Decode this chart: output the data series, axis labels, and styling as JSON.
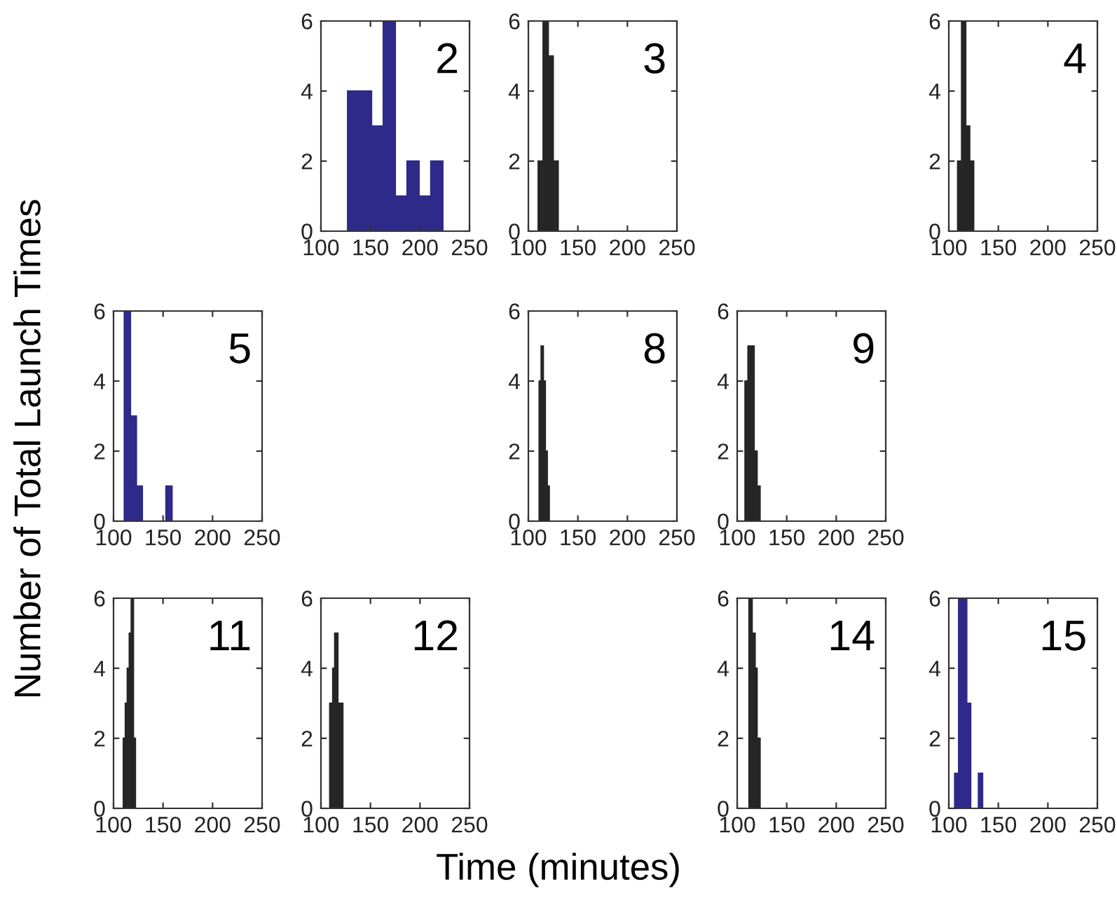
{
  "chart_data": [
    {
      "type": "histogram",
      "title": "2",
      "xlabel": "Time (minutes)",
      "ylabel": "Number of Total Launch Times",
      "color": "#2e2a8a",
      "bins": [
        127,
        139,
        151,
        163,
        175,
        187,
        199,
        211,
        223
      ],
      "values": [
        4,
        4,
        3,
        6,
        1,
        2,
        1,
        2
      ],
      "xlim": [
        100,
        250
      ],
      "ylim": [
        0,
        6
      ],
      "xticks": [
        100,
        150,
        200,
        250
      ],
      "yticks": [
        0,
        2,
        4,
        6
      ]
    },
    {
      "type": "histogram",
      "title": "3",
      "color": "#262626",
      "bins": [
        110,
        115,
        120,
        125,
        130
      ],
      "values": [
        2,
        6,
        5,
        2
      ],
      "xlim": [
        100,
        250
      ],
      "ylim": [
        0,
        6
      ],
      "xticks": [
        100,
        150,
        200,
        250
      ],
      "yticks": [
        0,
        2,
        4,
        6
      ]
    },
    {
      "type": "histogram",
      "title": "4",
      "color": "#262626",
      "bins": [
        109,
        113,
        117,
        121,
        125
      ],
      "values": [
        2,
        6,
        3,
        2
      ],
      "xlim": [
        100,
        250
      ],
      "ylim": [
        0,
        6
      ],
      "xticks": [
        100,
        150,
        200,
        250
      ],
      "yticks": [
        0,
        2,
        4,
        6
      ]
    },
    {
      "type": "histogram",
      "title": "5",
      "color": "#2e2a8a",
      "bins": [
        111,
        117,
        123,
        129,
        135,
        141,
        147,
        153,
        159
      ],
      "values": [
        6,
        3,
        1,
        0,
        0,
        0,
        0,
        1
      ],
      "xlim": [
        100,
        250
      ],
      "ylim": [
        0,
        6
      ],
      "xticks": [
        100,
        150,
        200,
        250
      ],
      "yticks": [
        0,
        2,
        4,
        6
      ]
    },
    {
      "type": "histogram",
      "title": "8",
      "color": "#262626",
      "bins": [
        111,
        113,
        115,
        117,
        119,
        121
      ],
      "values": [
        4,
        5,
        4,
        2,
        1
      ],
      "xlim": [
        100,
        250
      ],
      "ylim": [
        0,
        6
      ],
      "xticks": [
        100,
        150,
        200,
        250
      ],
      "yticks": [
        0,
        2,
        4,
        6
      ]
    },
    {
      "type": "histogram",
      "title": "9",
      "color": "#262626",
      "bins": [
        108,
        111,
        114,
        117,
        120,
        123
      ],
      "values": [
        4,
        5,
        5,
        2,
        1
      ],
      "xlim": [
        100,
        250
      ],
      "ylim": [
        0,
        6
      ],
      "xticks": [
        100,
        150,
        200,
        250
      ],
      "yticks": [
        0,
        2,
        4,
        6
      ]
    },
    {
      "type": "histogram",
      "title": "11",
      "color": "#262626",
      "bins": [
        110,
        112,
        114,
        116,
        118,
        120,
        122
      ],
      "values": [
        2,
        3,
        4,
        5,
        6,
        2
      ],
      "xlim": [
        100,
        250
      ],
      "ylim": [
        0,
        6
      ],
      "xticks": [
        100,
        150,
        200,
        250
      ],
      "yticks": [
        0,
        2,
        4,
        6
      ]
    },
    {
      "type": "histogram",
      "title": "12",
      "color": "#262626",
      "bins": [
        109,
        112,
        114,
        117,
        122
      ],
      "values": [
        3,
        4,
        5,
        3
      ],
      "xlim": [
        100,
        250
      ],
      "ylim": [
        0,
        6
      ],
      "xticks": [
        100,
        150,
        200,
        250
      ],
      "yticks": [
        0,
        2,
        4,
        6
      ]
    },
    {
      "type": "histogram",
      "title": "14",
      "color": "#262626",
      "bins": [
        112,
        115,
        118,
        120,
        123
      ],
      "values": [
        6,
        5,
        4,
        2
      ],
      "xlim": [
        100,
        250
      ],
      "ylim": [
        0,
        6
      ],
      "xticks": [
        100,
        150,
        200,
        250
      ],
      "yticks": [
        0,
        2,
        4,
        6
      ]
    },
    {
      "type": "histogram",
      "title": "15",
      "color": "#2e2a8a",
      "bins": [
        106,
        110,
        114,
        118,
        122,
        126,
        130,
        134
      ],
      "values": [
        1,
        6,
        6,
        3,
        0,
        0,
        1
      ],
      "xlim": [
        100,
        250
      ],
      "ylim": [
        0,
        6
      ],
      "xticks": [
        100,
        150,
        200,
        250
      ],
      "yticks": [
        0,
        2,
        4,
        6
      ]
    }
  ]
}
